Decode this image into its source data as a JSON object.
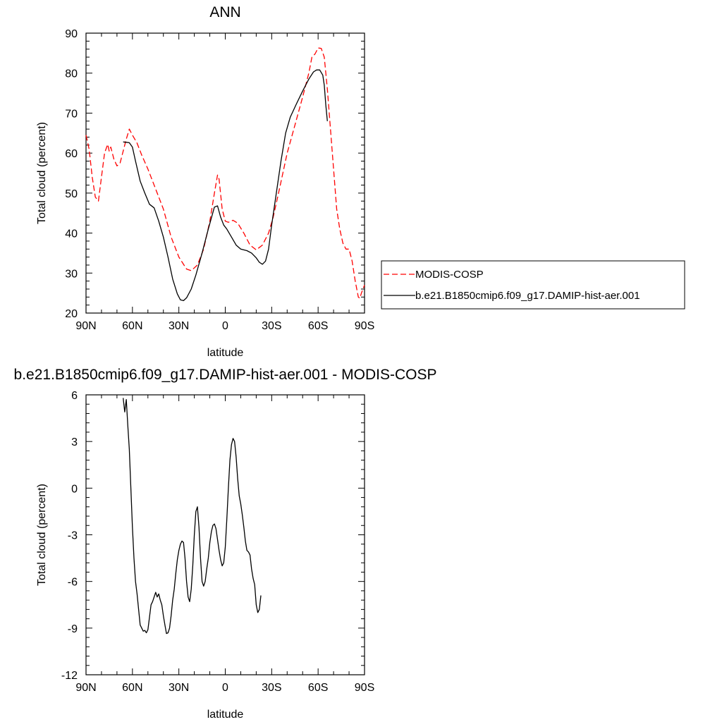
{
  "chart_data": [
    {
      "type": "line",
      "title": "ANN",
      "xlabel": "latitude",
      "ylabel": "Total cloud (percent)",
      "xlim": [
        -90,
        90
      ],
      "ylim": [
        20,
        90
      ],
      "x_tick_values": [
        -90,
        -60,
        -30,
        0,
        30,
        60,
        90
      ],
      "x_tick_labels": [
        "90N",
        "60N",
        "30N",
        "0",
        "30S",
        "60S",
        "90S"
      ],
      "y_tick_values": [
        20,
        30,
        40,
        50,
        60,
        70,
        80,
        90
      ],
      "y_tick_labels": [
        "20",
        "30",
        "40",
        "50",
        "60",
        "70",
        "80",
        "90"
      ],
      "legend": {
        "placement": "right"
      },
      "series": [
        {
          "name": "MODIS-COSP",
          "color": "#ff0000",
          "dash": "dashed",
          "points": [
            [
              -90,
              64.5
            ],
            [
              -88,
              61
            ],
            [
              -86,
              54
            ],
            [
              -84,
              49
            ],
            [
              -82,
              48
            ],
            [
              -80,
              54
            ],
            [
              -78,
              60
            ],
            [
              -76,
              62.2
            ],
            [
              -75,
              60.5
            ],
            [
              -74,
              61.5
            ],
            [
              -72,
              58.5
            ],
            [
              -70,
              56.8
            ],
            [
              -68,
              57.5
            ],
            [
              -66,
              60.5
            ],
            [
              -64,
              63.5
            ],
            [
              -62,
              66
            ],
            [
              -60,
              64.5
            ],
            [
              -57,
              62.5
            ],
            [
              -54,
              59.5
            ],
            [
              -50,
              56
            ],
            [
              -45,
              51
            ],
            [
              -40,
              46
            ],
            [
              -35,
              39
            ],
            [
              -30,
              34
            ],
            [
              -25,
              31
            ],
            [
              -22,
              30.6
            ],
            [
              -18,
              32
            ],
            [
              -14,
              36
            ],
            [
              -10,
              43
            ],
            [
              -7,
              50
            ],
            [
              -5,
              54.5
            ],
            [
              -4,
              53.5
            ],
            [
              -2,
              46
            ],
            [
              0,
              43
            ],
            [
              2,
              42.7
            ],
            [
              5,
              43.2
            ],
            [
              8,
              42.5
            ],
            [
              12,
              40
            ],
            [
              16,
              37
            ],
            [
              20,
              35.8
            ],
            [
              24,
              37
            ],
            [
              28,
              40
            ],
            [
              31,
              44
            ],
            [
              35,
              51
            ],
            [
              40,
              60
            ],
            [
              45,
              67
            ],
            [
              50,
              74
            ],
            [
              54,
              80
            ],
            [
              56,
              84
            ],
            [
              58,
              84.8
            ],
            [
              60,
              86.3
            ],
            [
              62,
              86.2
            ],
            [
              64,
              84
            ],
            [
              66,
              76
            ],
            [
              68,
              66
            ],
            [
              70,
              56
            ],
            [
              72,
              46
            ],
            [
              74,
              41
            ],
            [
              76,
              37.5
            ],
            [
              78,
              36
            ],
            [
              80,
              36
            ],
            [
              82,
              33
            ],
            [
              84,
              28
            ],
            [
              86,
              24
            ],
            [
              87,
              23.7
            ],
            [
              88,
              25
            ],
            [
              90,
              27
            ]
          ]
        },
        {
          "name": "b.e21.B1850cmip6.f09_g17.DAMIP-hist-aer.001",
          "color": "#000000",
          "dash": "solid",
          "points": [
            [
              -66,
              62.8
            ],
            [
              -64,
              62.7
            ],
            [
              -62,
              62.6
            ],
            [
              -60,
              61.5
            ],
            [
              -58,
              58
            ],
            [
              -55,
              53
            ],
            [
              -52,
              50
            ],
            [
              -49,
              47.2
            ],
            [
              -46,
              46.3
            ],
            [
              -43,
              43
            ],
            [
              -40,
              39
            ],
            [
              -37,
              34
            ],
            [
              -34,
              28.5
            ],
            [
              -31,
              24.8
            ],
            [
              -29,
              23.3
            ],
            [
              -27,
              23.1
            ],
            [
              -25,
              23.8
            ],
            [
              -22,
              26
            ],
            [
              -19,
              29.5
            ],
            [
              -15,
              35
            ],
            [
              -11,
              41
            ],
            [
              -7,
              46.5
            ],
            [
              -5,
              46.8
            ],
            [
              -3,
              44
            ],
            [
              -1,
              42
            ],
            [
              1,
              41
            ],
            [
              4,
              39
            ],
            [
              7,
              37
            ],
            [
              10,
              36
            ],
            [
              14,
              35.6
            ],
            [
              17,
              35
            ],
            [
              20,
              33.8
            ],
            [
              22,
              32.7
            ],
            [
              24,
              32.2
            ],
            [
              26,
              33
            ],
            [
              28,
              36
            ],
            [
              30,
              42
            ],
            [
              33,
              50
            ],
            [
              36,
              58
            ],
            [
              39,
              65
            ],
            [
              42,
              69
            ],
            [
              46,
              72.3
            ],
            [
              50,
              75.5
            ],
            [
              54,
              78.5
            ],
            [
              57,
              80.3
            ],
            [
              59,
              80.8
            ],
            [
              61,
              80.8
            ],
            [
              63,
              79.5
            ],
            [
              64,
              77
            ],
            [
              65,
              72
            ],
            [
              66,
              68
            ]
          ]
        }
      ]
    },
    {
      "type": "line",
      "title": "b.e21.B1850cmip6.f09_g17.DAMIP-hist-aer.001 - MODIS-COSP",
      "xlabel": "latitude",
      "ylabel": "Total cloud (percent)",
      "xlim": [
        -90,
        90
      ],
      "ylim": [
        -12,
        6
      ],
      "x_tick_values": [
        -90,
        -60,
        -30,
        0,
        30,
        60,
        90
      ],
      "x_tick_labels": [
        "90N",
        "60N",
        "30N",
        "0",
        "30S",
        "60S",
        "90S"
      ],
      "y_tick_values": [
        -12,
        -9,
        -6,
        -3,
        0,
        3,
        6
      ],
      "y_tick_labels": [
        "-12",
        "-9",
        "-6",
        "-3",
        "0",
        "3",
        "6"
      ],
      "series": [
        {
          "color": "#000000",
          "dash": "solid",
          "points": [
            [
              -66,
              5.8
            ],
            [
              -65,
              4.9
            ],
            [
              -64,
              5.7
            ],
            [
              -63,
              4
            ],
            [
              -62,
              2.5
            ],
            [
              -61,
              0
            ],
            [
              -60,
              -2.5
            ],
            [
              -59,
              -4.5
            ],
            [
              -58,
              -6
            ],
            [
              -57,
              -6.8
            ],
            [
              -56,
              -7.8
            ],
            [
              -55,
              -8.8
            ],
            [
              -54,
              -9
            ],
            [
              -53,
              -9.2
            ],
            [
              -52,
              -9.15
            ],
            [
              -51,
              -9.3
            ],
            [
              -50,
              -9.1
            ],
            [
              -49,
              -8.3
            ],
            [
              -48,
              -7.5
            ],
            [
              -47,
              -7.3
            ],
            [
              -46,
              -7
            ],
            [
              -45,
              -6.7
            ],
            [
              -44,
              -7
            ],
            [
              -43,
              -6.8
            ],
            [
              -42,
              -7.2
            ],
            [
              -41,
              -7.5
            ],
            [
              -40,
              -8.2
            ],
            [
              -39,
              -8.8
            ],
            [
              -38,
              -9.35
            ],
            [
              -37,
              -9.3
            ],
            [
              -36,
              -9
            ],
            [
              -35,
              -8.2
            ],
            [
              -34,
              -7.2
            ],
            [
              -33,
              -6.5
            ],
            [
              -32,
              -5.5
            ],
            [
              -31,
              -4.6
            ],
            [
              -30,
              -4
            ],
            [
              -29,
              -3.6
            ],
            [
              -28,
              -3.4
            ],
            [
              -27,
              -3.5
            ],
            [
              -26,
              -4.5
            ],
            [
              -25,
              -6
            ],
            [
              -24,
              -7
            ],
            [
              -23,
              -7.3
            ],
            [
              -22,
              -6.5
            ],
            [
              -21,
              -5
            ],
            [
              -20,
              -3
            ],
            [
              -19,
              -1.5
            ],
            [
              -18,
              -1.2
            ],
            [
              -17,
              -2.5
            ],
            [
              -16,
              -4.5
            ],
            [
              -15,
              -6
            ],
            [
              -14,
              -6.3
            ],
            [
              -13,
              -6
            ],
            [
              -12,
              -5.2
            ],
            [
              -11,
              -4.5
            ],
            [
              -10,
              -3.5
            ],
            [
              -9,
              -2.8
            ],
            [
              -8,
              -2.4
            ],
            [
              -7,
              -2.3
            ],
            [
              -6,
              -2.6
            ],
            [
              -5,
              -3.3
            ],
            [
              -4,
              -4
            ],
            [
              -3,
              -4.6
            ],
            [
              -2,
              -5
            ],
            [
              -1,
              -4.8
            ],
            [
              0,
              -3.8
            ],
            [
              1,
              -2
            ],
            [
              2,
              0
            ],
            [
              3,
              1.8
            ],
            [
              4,
              2.8
            ],
            [
              5,
              3.2
            ],
            [
              6,
              3
            ],
            [
              7,
              2
            ],
            [
              8,
              0.6
            ],
            [
              9,
              -0.5
            ],
            [
              10,
              -1
            ],
            [
              11,
              -1.7
            ],
            [
              12,
              -2.5
            ],
            [
              13,
              -3.4
            ],
            [
              14,
              -4
            ],
            [
              15,
              -4.1
            ],
            [
              16,
              -4.3
            ],
            [
              17,
              -5.2
            ],
            [
              18,
              -5.8
            ],
            [
              19,
              -6.2
            ],
            [
              20,
              -7.5
            ],
            [
              21,
              -8
            ],
            [
              22,
              -7.8
            ],
            [
              23,
              -6.9
            ]
          ]
        }
      ]
    }
  ]
}
